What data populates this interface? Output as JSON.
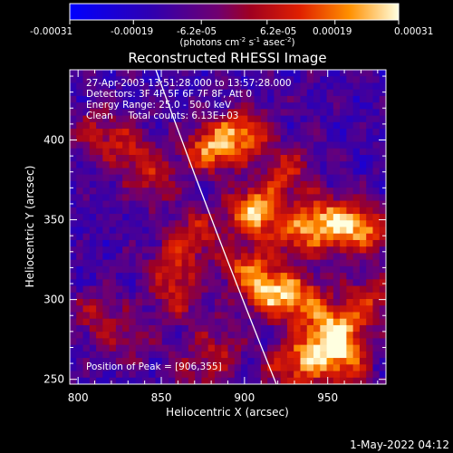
{
  "chart_data": {
    "type": "heatmap",
    "title": "Reconstructed RHESSI Image",
    "xlabel": "Heliocentric X (arcsec)",
    "ylabel": "Heliocentric Y (arcsec)",
    "xlim": [
      795,
      985
    ],
    "ylim": [
      247,
      444
    ],
    "x_ticks": [
      "800",
      "850",
      "900",
      "950"
    ],
    "x_tick_values": [
      800,
      850,
      900,
      950
    ],
    "y_ticks": [
      "250",
      "300",
      "350",
      "400"
    ],
    "y_tick_values": [
      250,
      300,
      350,
      400
    ],
    "colorbar": {
      "tick_labels": [
        "-0.00031",
        "-0.00019",
        "-6.2e-05",
        "6.2e-05",
        "0.00019",
        "0.00031"
      ],
      "tick_values": [
        -0.00031,
        -0.00019,
        -6.2e-05,
        6.2e-05,
        0.00019,
        0.00031
      ],
      "units": "(photons cm⁻² s⁻¹ asec⁻²)",
      "range": [
        -0.00031,
        0.00031
      ]
    },
    "annotations": [
      "27-Apr-2003 13:51:28.000 to 13:57:28.000",
      "Detectors: 3F 4F 5F 6F 7F 8F, Att 0",
      "Energy Range: 25.0 - 50.0 keV",
      "Clean     Total counts: 6.13E+03"
    ],
    "peak_label": "Position of Peak = [906,355]",
    "peak": [
      906,
      355
    ],
    "hotspots": [
      {
        "x": 906,
        "y": 355,
        "v": 1.0
      },
      {
        "x": 880,
        "y": 395,
        "v": 0.85
      },
      {
        "x": 900,
        "y": 405,
        "v": 0.75
      },
      {
        "x": 925,
        "y": 380,
        "v": 0.55
      },
      {
        "x": 945,
        "y": 350,
        "v": 0.6
      },
      {
        "x": 930,
        "y": 340,
        "v": 0.55
      },
      {
        "x": 960,
        "y": 345,
        "v": 0.65
      },
      {
        "x": 975,
        "y": 345,
        "v": 0.55
      },
      {
        "x": 915,
        "y": 305,
        "v": 0.85
      },
      {
        "x": 900,
        "y": 320,
        "v": 0.6
      },
      {
        "x": 935,
        "y": 300,
        "v": 0.7
      },
      {
        "x": 955,
        "y": 280,
        "v": 0.95
      },
      {
        "x": 975,
        "y": 300,
        "v": 0.55
      },
      {
        "x": 940,
        "y": 265,
        "v": 0.65
      },
      {
        "x": 960,
        "y": 260,
        "v": 0.6
      },
      {
        "x": 845,
        "y": 375,
        "v": 0.5
      },
      {
        "x": 830,
        "y": 395,
        "v": 0.45
      },
      {
        "x": 810,
        "y": 405,
        "v": 0.4
      },
      {
        "x": 870,
        "y": 340,
        "v": 0.55
      },
      {
        "x": 855,
        "y": 320,
        "v": 0.45
      },
      {
        "x": 860,
        "y": 300,
        "v": 0.4
      },
      {
        "x": 810,
        "y": 290,
        "v": 0.4
      },
      {
        "x": 830,
        "y": 275,
        "v": 0.35
      },
      {
        "x": 885,
        "y": 270,
        "v": 0.4
      },
      {
        "x": 870,
        "y": 255,
        "v": 0.3
      },
      {
        "x": 925,
        "y": 255,
        "v": 0.45
      }
    ]
  },
  "footer": {
    "timestamp": "1-May-2022 04:12"
  }
}
